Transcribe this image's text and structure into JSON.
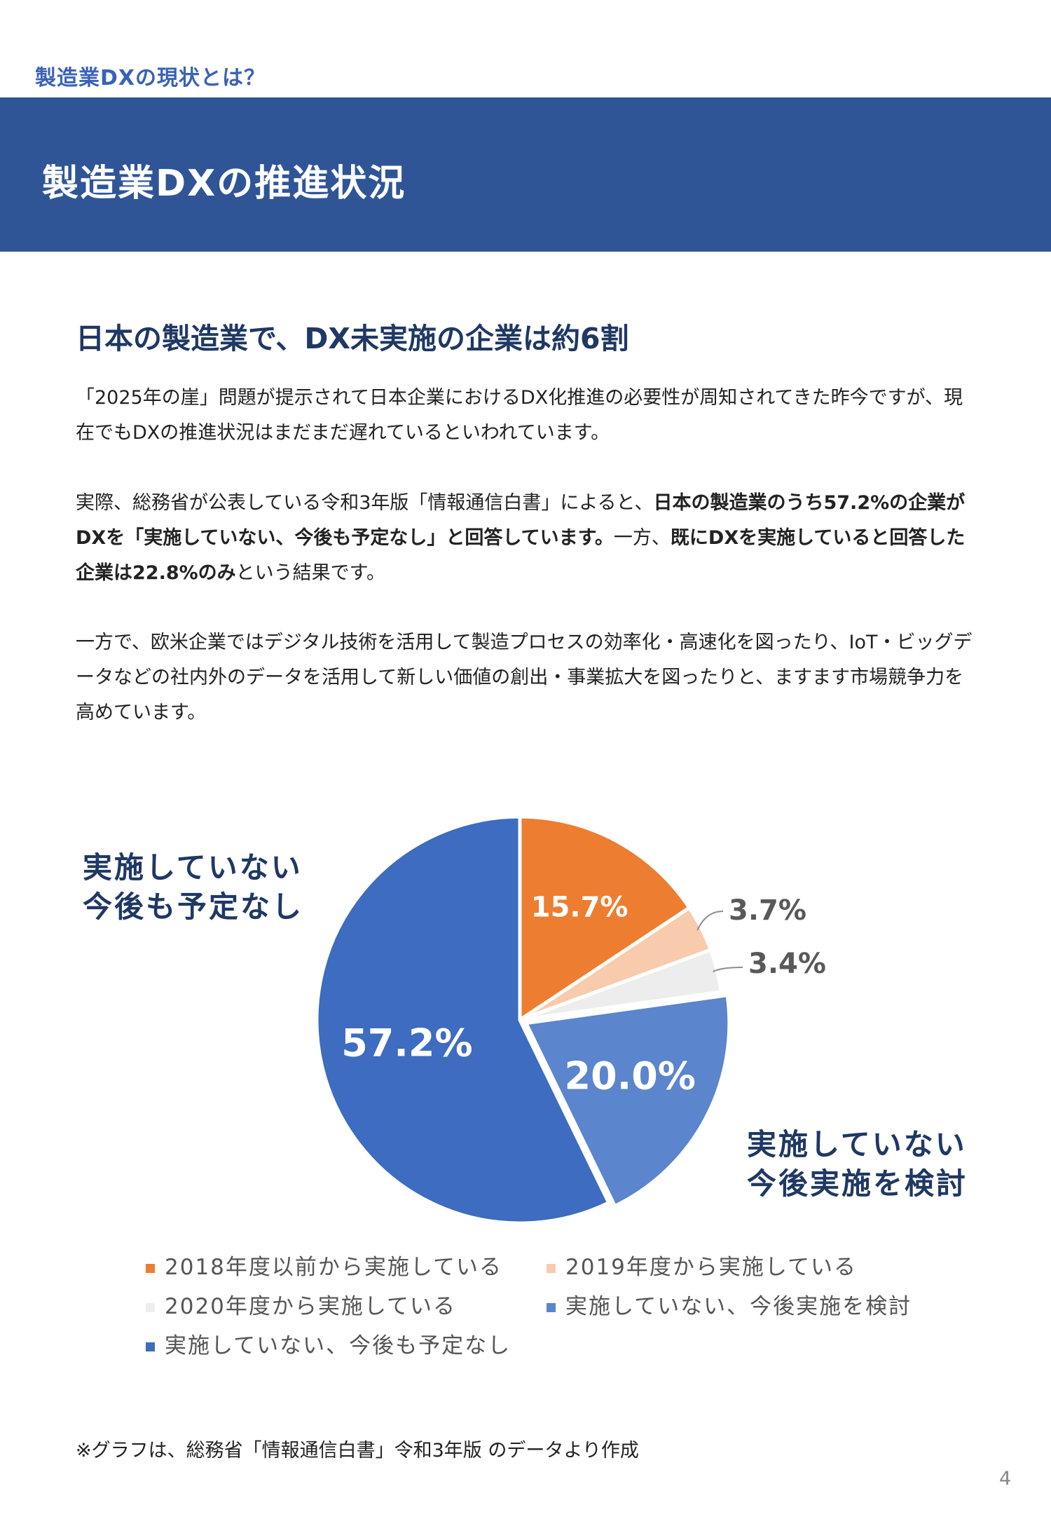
{
  "header": {
    "eyebrow": "製造業DXの現状とは？",
    "title": "製造業DXの推進状況"
  },
  "section": {
    "heading": "日本の製造業で、DX未実施の企業は約6割",
    "p1": "「2025年の崖」問題が提示されて日本企業におけるDX化推進の必要性が周知されてきた昨今ですが、現在でもDXの推進状況はまだまだ遅れているといわれています。",
    "p2_a": "実際、総務省が公表している令和3年版「情報通信白書」によると、",
    "p2_b": "日本の製造業のうち57.2%の企業がDXを「実施していない、今後も予定なし」と回答しています。",
    "p2_c": "一方、",
    "p2_d": "既にDXを実施していると回答した企業は22.8%のみ",
    "p2_e": "という結果です。",
    "p3": "一方で、欧米企業ではデジタル技術を活用して製造プロセスの効率化・高速化を図ったり、IoT・ビッグデータなどの社内外のデータを活用して新しい価値の創出・事業拡大を図ったりと、ますます市場競争力を高めています。"
  },
  "callouts": {
    "left_line1": "実施していない",
    "left_line2": "今後も予定なし",
    "right_line1": "実施していない",
    "right_line2": "今後実施を検討"
  },
  "chart_data": {
    "type": "pie",
    "slices": [
      {
        "label": "2018年度以前から実施している",
        "value": 15.7,
        "display": "15.7%",
        "color": "#ed7d31"
      },
      {
        "label": "2019年度から実施している",
        "value": 3.7,
        "display": "3.7%",
        "color": "#f8cbad"
      },
      {
        "label": "2020年度から実施している",
        "value": 3.4,
        "display": "3.4%",
        "color": "#ededed"
      },
      {
        "label": "実施していない、今後実施を検討",
        "value": 20.0,
        "display": "20.0%",
        "color": "#5b85cc"
      },
      {
        "label": "実施していない、今後も予定なし",
        "value": 57.2,
        "display": "57.2%",
        "color": "#3d6cc0"
      }
    ],
    "legend_position": "bottom"
  },
  "footnote": "※グラフは、総務省「情報通信白書」令和3年版 のデータより作成",
  "page_number": "4"
}
